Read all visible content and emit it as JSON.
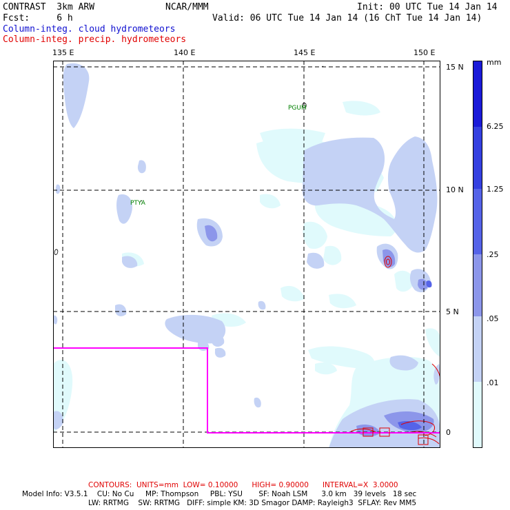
{
  "header": {
    "model_name": "CONTRAST  3km ARW",
    "org": "NCAR/MMM",
    "init": "Init: 00 UTC Tue 14 Jan 14",
    "forecast": "Fcst:     6 h",
    "valid": "Valid: 06 UTC Tue 14 Jan 14 (16 ChT Tue 14 Jan 14)",
    "field1": "Column-integ. cloud hydrometeors",
    "field2": "Column-integ. precip. hydrometeors"
  },
  "map": {
    "lon_labels": [
      "135 E",
      "140 E",
      "145 E",
      "150 E"
    ],
    "lat_labels": [
      "15 N",
      "10 N",
      "5 N",
      "0"
    ],
    "lon_range": [
      134.6,
      150.7
    ],
    "lat_range": [
      -0.6,
      15.5
    ],
    "stations": [
      {
        "name": "PGUM",
        "lon": 144.8,
        "lat": 13.5
      },
      {
        "name": "PTYA",
        "lon": 138.1,
        "lat": 9.5
      }
    ]
  },
  "colorbar": {
    "unit": "mm",
    "labels": [
      "6.25",
      "1.25",
      ".25",
      ".05",
      ".01"
    ],
    "colors": [
      "#ffffff",
      "#e0fafc",
      "#c4d2f5",
      "#8c96ea",
      "#5563e8",
      "#3440e0",
      "#1a1ad8"
    ]
  },
  "footer": {
    "contours": "CONTOURS:  UNITS=mm  LOW= 0.10000      HIGH= 0.90000      INTERVAL=X  3.0000",
    "model_info1": "Model Info: V3.5.1    CU: No Cu     MP: Thompson     PBL: YSU       SF: Noah LSM      3.0 km   39 levels   18 sec",
    "model_info2": "LW: RRTMG    SW: RRTMG   DIFF: simple KM: 3D Smagor DAMP: Rayleigh3  SFLAY: Rev MM5"
  }
}
